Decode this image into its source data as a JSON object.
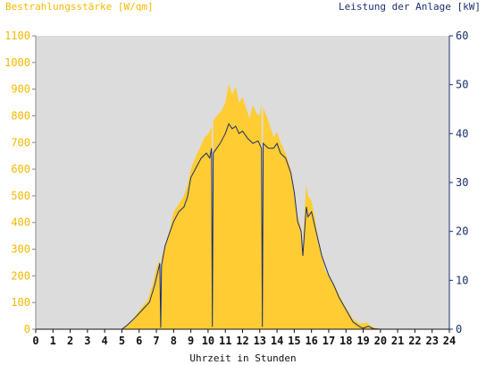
{
  "chart_data": {
    "type": "area",
    "y_left_label": "Bestrahlungsstärke [W/qm]",
    "y_right_label": "Leistung der Anlage [kW]",
    "xlabel": "Uhrzeit in Stunden",
    "xlim": [
      0,
      24
    ],
    "x_ticks": [
      "0",
      "1",
      "2",
      "3",
      "4",
      "5",
      "6",
      "7",
      "8",
      "9",
      "10",
      "11",
      "12",
      "13",
      "14",
      "15",
      "16",
      "17",
      "18",
      "19",
      "20",
      "21",
      "22",
      "23",
      "24"
    ],
    "y_left_lim": [
      0,
      1100
    ],
    "y_left_ticks": [
      "0",
      "100",
      "200",
      "300",
      "400",
      "500",
      "600",
      "700",
      "800",
      "900",
      "1000",
      "1100"
    ],
    "y_right_lim": [
      0,
      60
    ],
    "y_right_ticks": [
      "0",
      "10",
      "20",
      "30",
      "40",
      "50",
      "60"
    ],
    "grid": false,
    "colors": {
      "irradiance_fill": "#ffcc33",
      "power_line": "#1a2f6e",
      "plot_background": "#dcdcdc",
      "left_axis_text": "#f5b800",
      "right_axis_text": "#1a2f6e"
    },
    "series": [
      {
        "axis": "left",
        "points": [
          [
            0,
            0
          ],
          [
            5.0,
            0
          ],
          [
            5.2,
            10
          ],
          [
            5.6,
            35
          ],
          [
            6.0,
            70
          ],
          [
            6.5,
            110
          ],
          [
            6.8,
            170
          ],
          [
            7.0,
            230
          ],
          [
            7.2,
            260
          ],
          [
            7.25,
            40
          ],
          [
            7.3,
            270
          ],
          [
            7.5,
            310
          ],
          [
            7.8,
            380
          ],
          [
            8.0,
            440
          ],
          [
            8.3,
            470
          ],
          [
            8.6,
            500
          ],
          [
            8.8,
            540
          ],
          [
            9.0,
            600
          ],
          [
            9.3,
            650
          ],
          [
            9.6,
            690
          ],
          [
            9.8,
            720
          ],
          [
            10.0,
            730
          ],
          [
            10.2,
            760
          ],
          [
            10.25,
            60
          ],
          [
            10.3,
            780
          ],
          [
            10.5,
            800
          ],
          [
            10.8,
            820
          ],
          [
            11.0,
            850
          ],
          [
            11.2,
            920
          ],
          [
            11.4,
            880
          ],
          [
            11.6,
            910
          ],
          [
            11.8,
            850
          ],
          [
            12.0,
            870
          ],
          [
            12.2,
            830
          ],
          [
            12.4,
            790
          ],
          [
            12.6,
            840
          ],
          [
            12.8,
            810
          ],
          [
            13.0,
            800
          ],
          [
            13.1,
            850
          ],
          [
            13.15,
            60
          ],
          [
            13.2,
            830
          ],
          [
            13.4,
            800
          ],
          [
            13.6,
            760
          ],
          [
            13.8,
            720
          ],
          [
            14.0,
            740
          ],
          [
            14.2,
            700
          ],
          [
            14.5,
            660
          ],
          [
            14.8,
            600
          ],
          [
            15.0,
            520
          ],
          [
            15.2,
            420
          ],
          [
            15.4,
            380
          ],
          [
            15.5,
            300
          ],
          [
            15.6,
            450
          ],
          [
            15.7,
            540
          ],
          [
            15.8,
            500
          ],
          [
            16.0,
            480
          ],
          [
            16.2,
            420
          ],
          [
            16.4,
            330
          ],
          [
            16.6,
            280
          ],
          [
            16.8,
            220
          ],
          [
            17.0,
            200
          ],
          [
            17.3,
            170
          ],
          [
            17.6,
            130
          ],
          [
            18.0,
            80
          ],
          [
            18.4,
            40
          ],
          [
            18.8,
            20
          ],
          [
            19.2,
            25
          ],
          [
            19.5,
            10
          ],
          [
            20.0,
            0
          ],
          [
            24,
            0
          ]
        ]
      },
      {
        "axis": "right",
        "points": [
          [
            0,
            0
          ],
          [
            5.0,
            0
          ],
          [
            5.3,
            0.8
          ],
          [
            5.8,
            2.5
          ],
          [
            6.2,
            4
          ],
          [
            6.6,
            5.5
          ],
          [
            6.9,
            9
          ],
          [
            7.1,
            12
          ],
          [
            7.2,
            13.5
          ],
          [
            7.25,
            0.3
          ],
          [
            7.3,
            13
          ],
          [
            7.5,
            17
          ],
          [
            7.7,
            19
          ],
          [
            8.0,
            22
          ],
          [
            8.3,
            24
          ],
          [
            8.6,
            25
          ],
          [
            8.8,
            27
          ],
          [
            9.0,
            31
          ],
          [
            9.3,
            33
          ],
          [
            9.6,
            35
          ],
          [
            9.9,
            36
          ],
          [
            10.1,
            35
          ],
          [
            10.2,
            37
          ],
          [
            10.25,
            0.5
          ],
          [
            10.3,
            36
          ],
          [
            10.5,
            37
          ],
          [
            10.7,
            38
          ],
          [
            11.0,
            40
          ],
          [
            11.2,
            42
          ],
          [
            11.4,
            41
          ],
          [
            11.6,
            41.5
          ],
          [
            11.8,
            40
          ],
          [
            12.0,
            40.5
          ],
          [
            12.3,
            39
          ],
          [
            12.6,
            38
          ],
          [
            12.9,
            38.5
          ],
          [
            13.1,
            37
          ],
          [
            13.15,
            0.5
          ],
          [
            13.2,
            38
          ],
          [
            13.5,
            37
          ],
          [
            13.8,
            37
          ],
          [
            14.0,
            38
          ],
          [
            14.2,
            36
          ],
          [
            14.5,
            35
          ],
          [
            14.8,
            32
          ],
          [
            15.0,
            28
          ],
          [
            15.2,
            22
          ],
          [
            15.4,
            20
          ],
          [
            15.5,
            15
          ],
          [
            15.6,
            20
          ],
          [
            15.7,
            25
          ],
          [
            15.8,
            23
          ],
          [
            16.0,
            24
          ],
          [
            16.2,
            21
          ],
          [
            16.4,
            18
          ],
          [
            16.6,
            15
          ],
          [
            16.8,
            13
          ],
          [
            17.0,
            11
          ],
          [
            17.3,
            9
          ],
          [
            17.6,
            6.5
          ],
          [
            18.0,
            4
          ],
          [
            18.4,
            1.5
          ],
          [
            18.8,
            0.5
          ],
          [
            19.0,
            0.2
          ],
          [
            19.3,
            0.6
          ],
          [
            19.6,
            0.1
          ],
          [
            20.0,
            0
          ],
          [
            24,
            0
          ]
        ]
      }
    ]
  }
}
